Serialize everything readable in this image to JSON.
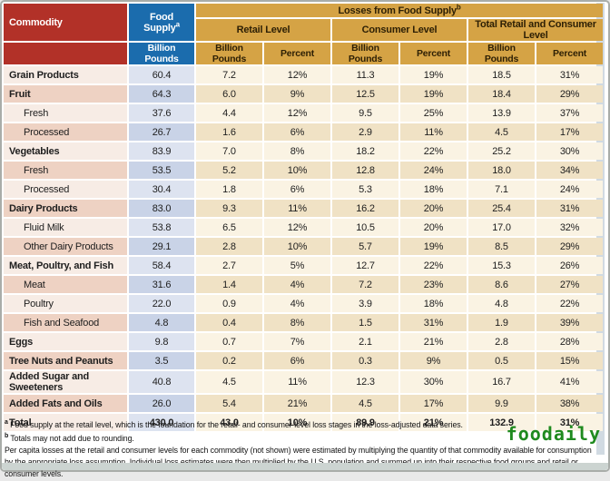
{
  "colors": {
    "header_red": "#b23128",
    "header_blue": "#1b6cad",
    "header_gold": "#d5a345",
    "row_pink_light": "#f7ece5",
    "row_pink_dark": "#eed2c3",
    "supply_blue_light": "#dde3f0",
    "supply_blue_dark": "#c9d3e7",
    "loss_cream_light": "#faf3e3",
    "loss_cream_dark": "#f0e2c5",
    "watermark_green": "#1f8a1f"
  },
  "table": {
    "header": {
      "commodity": "Commodity",
      "food_supply": "Food Supply",
      "food_supply_sup": "a",
      "losses_title": "Losses from Food Supply",
      "losses_sup": "b",
      "group_retail": "Retail Level",
      "group_consumer": "Consumer Level",
      "group_total": "Total Retail and Consumer Level",
      "billion_pounds": "Billion Pounds",
      "percent": "Percent"
    },
    "rows": [
      {
        "name": "Grain Products",
        "style": "main",
        "supply": "60.4",
        "values": [
          "7.2",
          "12%",
          "11.3",
          "19%",
          "18.5",
          "31%"
        ]
      },
      {
        "name": "Fruit",
        "style": "main",
        "supply": "64.3",
        "values": [
          "6.0",
          "9%",
          "12.5",
          "19%",
          "18.4",
          "29%"
        ]
      },
      {
        "name": "Fresh",
        "style": "sub",
        "supply": "37.6",
        "values": [
          "4.4",
          "12%",
          "9.5",
          "25%",
          "13.9",
          "37%"
        ]
      },
      {
        "name": "Processed",
        "style": "sub",
        "supply": "26.7",
        "values": [
          "1.6",
          "6%",
          "2.9",
          "11%",
          "4.5",
          "17%"
        ]
      },
      {
        "name": "Vegetables",
        "style": "main",
        "supply": "83.9",
        "values": [
          "7.0",
          "8%",
          "18.2",
          "22%",
          "25.2",
          "30%"
        ]
      },
      {
        "name": "Fresh",
        "style": "sub",
        "supply": "53.5",
        "values": [
          "5.2",
          "10%",
          "12.8",
          "24%",
          "18.0",
          "34%"
        ]
      },
      {
        "name": "Processed",
        "style": "sub",
        "supply": "30.4",
        "values": [
          "1.8",
          "6%",
          "5.3",
          "18%",
          "7.1",
          "24%"
        ]
      },
      {
        "name": "Dairy Products",
        "style": "main",
        "supply": "83.0",
        "values": [
          "9.3",
          "11%",
          "16.2",
          "20%",
          "25.4",
          "31%"
        ]
      },
      {
        "name": "Fluid Milk",
        "style": "sub",
        "supply": "53.8",
        "values": [
          "6.5",
          "12%",
          "10.5",
          "20%",
          "17.0",
          "32%"
        ]
      },
      {
        "name": "Other Dairy Products",
        "style": "sub",
        "supply": "29.1",
        "values": [
          "2.8",
          "10%",
          "5.7",
          "19%",
          "8.5",
          "29%"
        ]
      },
      {
        "name": "Meat, Poultry, and Fish",
        "style": "main",
        "supply": "58.4",
        "values": [
          "2.7",
          "5%",
          "12.7",
          "22%",
          "15.3",
          "26%"
        ]
      },
      {
        "name": "Meat",
        "style": "sub",
        "supply": "31.6",
        "values": [
          "1.4",
          "4%",
          "7.2",
          "23%",
          "8.6",
          "27%"
        ]
      },
      {
        "name": "Poultry",
        "style": "sub",
        "supply": "22.0",
        "values": [
          "0.9",
          "4%",
          "3.9",
          "18%",
          "4.8",
          "22%"
        ]
      },
      {
        "name": "Fish and Seafood",
        "style": "sub",
        "supply": "4.8",
        "values": [
          "0.4",
          "8%",
          "1.5",
          "31%",
          "1.9",
          "39%"
        ]
      },
      {
        "name": "Eggs",
        "style": "main",
        "supply": "9.8",
        "values": [
          "0.7",
          "7%",
          "2.1",
          "21%",
          "2.8",
          "28%"
        ]
      },
      {
        "name": "Tree Nuts and Peanuts",
        "style": "main",
        "supply": "3.5",
        "values": [
          "0.2",
          "6%",
          "0.3",
          "9%",
          "0.5",
          "15%"
        ]
      },
      {
        "name": "Added Sugar and Sweeteners",
        "style": "main",
        "supply": "40.8",
        "values": [
          "4.5",
          "11%",
          "12.3",
          "30%",
          "16.7",
          "41%"
        ]
      },
      {
        "name": "Added Fats and Oils",
        "style": "main",
        "supply": "26.0",
        "values": [
          "5.4",
          "21%",
          "4.5",
          "17%",
          "9.9",
          "38%"
        ]
      },
      {
        "name": "Total",
        "style": "total",
        "supply": "430.0",
        "values": [
          "43.0",
          "10%",
          "89.9",
          "21%",
          "132.9",
          "31%"
        ]
      }
    ]
  },
  "footnotes": {
    "a_marker": "a",
    "a_text": " Food supply at the retail level, which is the foundation for the retail- and consumer-level loss stages in the loss-adjusted data series.",
    "b_marker": "b",
    "b_text": " Totals may not add due to rounding.",
    "method": "Per capita losses at the retail and consumer levels for each commodity (not shown) were estimated by multiplying the quantity of that commodity available for consumption by the appropriate loss assumption. Individual loss estimates were then multiplied by the U.S. population and summed up into their respective food groups and retail or consumer levels."
  },
  "watermark": "foodaily"
}
